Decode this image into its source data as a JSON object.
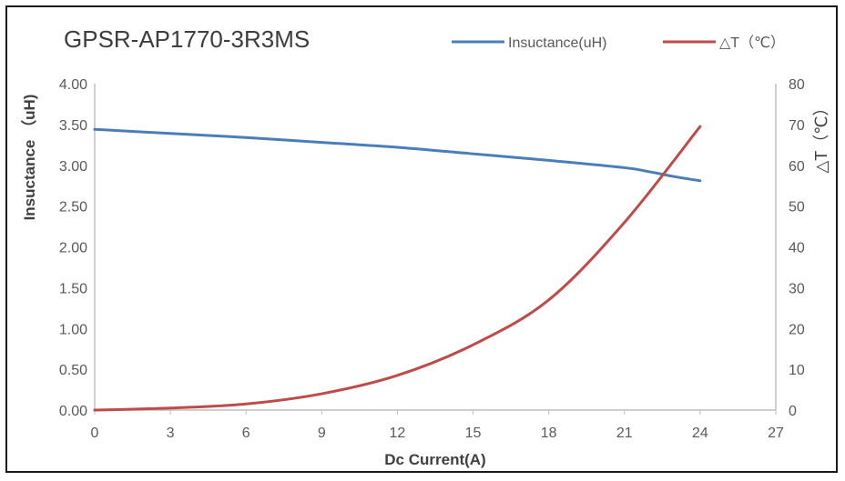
{
  "chart_data": {
    "type": "line",
    "title": "GPSR-AP1770-3R3MS",
    "xlabel": "Dc Current(A)",
    "ylabel": "Insuctance （uH)",
    "y2label": "△T（℃）",
    "xlim": [
      0,
      27
    ],
    "ylim": [
      0,
      4
    ],
    "y2lim": [
      0,
      80
    ],
    "x_ticks": [
      "0",
      "3",
      "6",
      "9",
      "12",
      "15",
      "18",
      "21",
      "24",
      "27"
    ],
    "y_ticks": [
      "0.00",
      "0.50",
      "1.00",
      "1.50",
      "2.00",
      "2.50",
      "3.00",
      "3.50",
      "4.00"
    ],
    "y2_ticks": [
      "0",
      "10",
      "20",
      "30",
      "40",
      "50",
      "60",
      "70",
      "80"
    ],
    "grid": false,
    "legend_position": "top-right",
    "series": [
      {
        "name": "Insuctance(uH)",
        "axis": "left",
        "color": "#4a7ebb",
        "x": [
          0,
          3,
          6,
          9,
          12,
          15,
          18,
          21,
          22,
          23,
          24
        ],
        "y": [
          3.44,
          3.39,
          3.34,
          3.28,
          3.22,
          3.14,
          3.06,
          2.97,
          2.92,
          2.86,
          2.81
        ]
      },
      {
        "name": "△T（℃）",
        "axis": "right",
        "color": "#be4b48",
        "x": [
          0,
          3,
          6,
          9,
          12,
          15,
          18,
          21,
          24
        ],
        "y": [
          0,
          0.5,
          1.5,
          4,
          8.5,
          16,
          27,
          46,
          69.5
        ]
      }
    ]
  }
}
